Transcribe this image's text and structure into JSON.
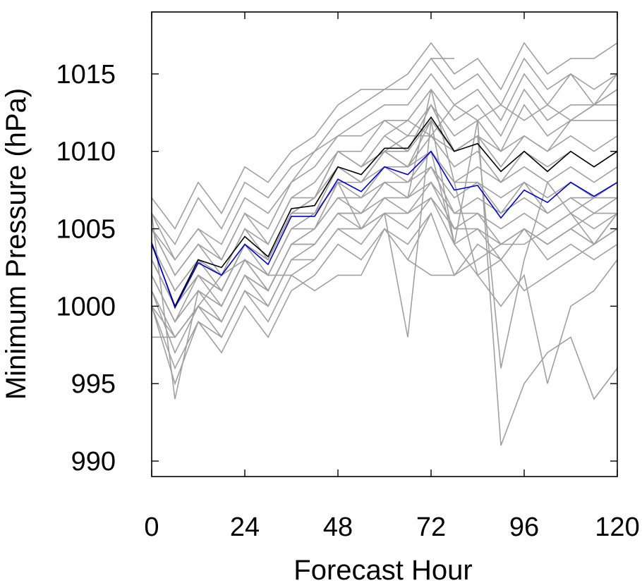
{
  "chart_data": {
    "type": "line",
    "title": "",
    "xlabel": "Forecast Hour",
    "ylabel": "Minimum Pressure (hPa)",
    "xlim": [
      0,
      120
    ],
    "ylim": [
      989,
      1019
    ],
    "xticks": [
      0,
      24,
      48,
      72,
      96,
      120
    ],
    "yticks": [
      990,
      995,
      1000,
      1005,
      1010,
      1015
    ],
    "grid": false,
    "legend": "none",
    "colors": {
      "members": "#a0a0a0",
      "mean": "#000000",
      "control": "#0000cc"
    },
    "series": [
      {
        "role": "control",
        "color": "#0000cc",
        "x": [
          0,
          6,
          12,
          18,
          24,
          30,
          36,
          42,
          48,
          54,
          60,
          66,
          72,
          78,
          84,
          90,
          96,
          102,
          108,
          114,
          120
        ],
        "values": [
          1004.1,
          999.9,
          1002.8,
          1002.0,
          1004.0,
          1002.7,
          1005.8,
          1005.8,
          1008.2,
          1007.4,
          1009.0,
          1008.5,
          1010.0,
          1007.5,
          1007.8,
          1005.7,
          1007.5,
          1006.7,
          1008.0,
          1007.1,
          1008.0
        ]
      },
      {
        "role": "mean",
        "color": "#000000",
        "x": [
          0,
          6,
          12,
          18,
          24,
          30,
          36,
          42,
          48,
          54,
          60,
          66,
          72,
          78,
          84,
          90,
          96,
          102,
          108,
          114,
          120
        ],
        "values": [
          1004.0,
          1000.0,
          1003.0,
          1002.5,
          1004.5,
          1003.2,
          1006.3,
          1006.5,
          1009.0,
          1008.5,
          1010.2,
          1010.2,
          1012.2,
          1010.0,
          1010.5,
          1008.7,
          1010.0,
          1008.7,
          1010.0,
          1009.0,
          1010.0
        ]
      },
      {
        "role": "member",
        "x": [
          0,
          6,
          12,
          18,
          24,
          30,
          36,
          42,
          48,
          54,
          60,
          66,
          72,
          78,
          84,
          90,
          96,
          102,
          108,
          114,
          120
        ],
        "values": [
          1007,
          1005,
          1008,
          1006,
          1009,
          1008,
          1010,
          1011,
          1013,
          1014,
          1014,
          1015,
          1017,
          1015,
          1016,
          1014,
          1017,
          1015,
          1016,
          1016,
          1017
        ]
      },
      {
        "role": "member",
        "x": [
          0,
          6,
          12,
          18,
          24,
          30,
          36,
          42,
          48,
          54,
          60,
          66,
          72,
          78,
          84,
          90,
          96,
          102,
          108,
          114,
          120
        ],
        "values": [
          1006,
          1004,
          1007,
          1005,
          1008,
          1007,
          1009,
          1010,
          1012,
          1013,
          1014,
          1014,
          1016,
          1014,
          1015,
          1013,
          1016,
          1014,
          1015,
          1014,
          1015
        ]
      },
      {
        "role": "member",
        "x": [
          0,
          6,
          12,
          18,
          24,
          30,
          36,
          42,
          48,
          54,
          60,
          66,
          72,
          78,
          84,
          90,
          96,
          102,
          108,
          114,
          120
        ],
        "values": [
          1006,
          1003,
          1005,
          1004,
          1007,
          1006,
          1008,
          1010,
          1011,
          1012,
          1013,
          1013,
          1015,
          1013,
          1014,
          1012,
          1015,
          1013,
          1015,
          1013,
          1014
        ]
      },
      {
        "role": "member",
        "x": [
          0,
          6,
          12,
          18,
          24,
          30,
          36,
          42,
          48,
          54,
          60,
          66,
          72,
          78,
          84,
          90,
          96,
          102,
          108,
          114,
          120
        ],
        "values": [
          1005,
          1003,
          1005,
          1003,
          1006,
          1005,
          1008,
          1009,
          1011,
          1011,
          1012,
          1012,
          1014,
          1012,
          1013,
          1011,
          1014,
          1012,
          1013,
          1013,
          1013
        ]
      },
      {
        "role": "member",
        "x": [
          0,
          6,
          12,
          18,
          24,
          30,
          36,
          42,
          48,
          54,
          60,
          66,
          72,
          78,
          84,
          90,
          96,
          102,
          108,
          114,
          120
        ],
        "values": [
          1005,
          1002,
          1004,
          1003,
          1006,
          1004,
          1007,
          1008,
          1010,
          1010,
          1012,
          1011,
          1013,
          1011,
          1012,
          1010,
          1013,
          1011,
          1012,
          1012,
          1012
        ]
      },
      {
        "role": "member",
        "x": [
          0,
          6,
          12,
          18,
          24,
          30,
          36,
          42,
          48,
          54,
          60,
          66,
          72,
          78,
          84,
          90,
          96,
          102,
          108,
          114,
          120
        ],
        "values": [
          1005,
          1002,
          1004,
          1002,
          1005,
          1004,
          1007,
          1007,
          1010,
          1009,
          1011,
          1010,
          1012,
          1010,
          1011,
          1009,
          1011,
          1010,
          1011,
          1010,
          1011
        ]
      },
      {
        "role": "member",
        "x": [
          0,
          6,
          12,
          18,
          24,
          30,
          36,
          42,
          48,
          54,
          60,
          66,
          72,
          78,
          84,
          90,
          96,
          102,
          108,
          114,
          120
        ],
        "values": [
          1004,
          1001,
          1003,
          1002,
          1005,
          1003,
          1006,
          1007,
          1009,
          1008,
          1010,
          1009,
          1011,
          1009,
          1010,
          1008,
          1010,
          1009,
          1010,
          1009,
          1010
        ]
      },
      {
        "role": "member",
        "x": [
          0,
          6,
          12,
          18,
          24,
          30,
          36,
          42,
          48,
          54,
          60,
          66,
          72,
          78,
          84,
          90,
          96,
          102,
          108,
          114,
          120
        ],
        "values": [
          1004,
          1001,
          1003,
          1001,
          1004,
          1003,
          1006,
          1006,
          1008,
          1008,
          1009,
          1009,
          1010,
          1008,
          1009,
          1008,
          1009,
          1008,
          1009,
          1008,
          1009
        ]
      },
      {
        "role": "member",
        "x": [
          0,
          6,
          12,
          18,
          24,
          30,
          36,
          42,
          48,
          54,
          60,
          66,
          72,
          78,
          84,
          90,
          96,
          102,
          108,
          114,
          120
        ],
        "values": [
          1003,
          1000,
          1002,
          1001,
          1004,
          1002,
          1005,
          1006,
          1008,
          1007,
          1009,
          1008,
          1010,
          1008,
          1008,
          1007,
          1008,
          1007,
          1008,
          1007,
          1008
        ]
      },
      {
        "role": "member",
        "x": [
          0,
          6,
          12,
          18,
          24,
          30,
          36,
          42,
          48,
          54,
          60,
          66,
          72,
          78,
          84,
          90,
          96,
          102,
          108,
          114,
          120
        ],
        "values": [
          1003,
          1000,
          1002,
          1000,
          1003,
          1002,
          1005,
          1005,
          1007,
          1007,
          1008,
          1008,
          1009,
          1007,
          1008,
          1006,
          1008,
          1006,
          1007,
          1007,
          1007
        ]
      },
      {
        "role": "member",
        "x": [
          0,
          6,
          12,
          18,
          24,
          30,
          36,
          42,
          48,
          54,
          60,
          66,
          72,
          78,
          84,
          90,
          96,
          102,
          108,
          114,
          120
        ],
        "values": [
          1002,
          999,
          1001,
          1000,
          1003,
          1001,
          1004,
          1005,
          1007,
          1006,
          1008,
          1007,
          1009,
          1006,
          1007,
          1006,
          1007,
          1006,
          1007,
          1006,
          1007
        ]
      },
      {
        "role": "member",
        "x": [
          0,
          6,
          12,
          18,
          24,
          30,
          36,
          42,
          48,
          54,
          60,
          66,
          72,
          78,
          84,
          90,
          96,
          102,
          108,
          114,
          120
        ],
        "values": [
          1002,
          999,
          1001,
          999,
          1002,
          1001,
          1004,
          1004,
          1006,
          1006,
          1007,
          1007,
          1008,
          1006,
          1006,
          1005,
          1006,
          1005,
          1006,
          1005,
          1006
        ]
      },
      {
        "role": "member",
        "x": [
          0,
          6,
          12,
          18,
          24,
          30,
          36,
          42,
          48,
          54,
          60,
          66,
          72,
          78,
          84,
          90,
          96,
          102,
          108,
          114,
          120
        ],
        "values": [
          1001,
          998,
          1000,
          999,
          1002,
          1000,
          1003,
          1004,
          1006,
          1005,
          1007,
          1006,
          1008,
          1005,
          1006,
          1004,
          1005,
          1004,
          1005,
          1004,
          1005
        ]
      },
      {
        "role": "member",
        "x": [
          0,
          6,
          12,
          18,
          24,
          30,
          36,
          42,
          48,
          54,
          60,
          66,
          72,
          78,
          84,
          90,
          96,
          102,
          108,
          114,
          120
        ],
        "values": [
          1001,
          997,
          1000,
          998,
          1001,
          1000,
          1003,
          1003,
          1005,
          1005,
          1006,
          1006,
          1007,
          1005,
          1005,
          1004,
          1005,
          1004,
          1005,
          1004,
          1005
        ]
      },
      {
        "role": "member",
        "x": [
          0,
          6,
          12,
          18,
          24,
          30,
          36,
          42,
          48,
          54,
          60,
          66,
          72,
          78,
          84,
          90,
          96,
          102,
          108,
          114,
          120
        ],
        "values": [
          1000,
          996,
          999,
          998,
          1001,
          999,
          1002,
          1003,
          1005,
          1004,
          1006,
          1005,
          1007,
          1004,
          1005,
          1003,
          1005,
          1003,
          1004,
          1003,
          1004
        ]
      },
      {
        "role": "member",
        "x": [
          0,
          6,
          12,
          18,
          24,
          30,
          36,
          42,
          48,
          54,
          60,
          66,
          72
        ],
        "values": [
          1000,
          995,
          999,
          997,
          1000,
          998,
          1001,
          1002,
          1004,
          1003,
          1005,
          1004,
          1006
        ]
      },
      {
        "role": "member",
        "x": [
          0,
          6,
          12,
          18,
          24,
          30,
          36,
          42,
          48,
          54,
          60,
          66,
          72
        ],
        "values": [
          1006,
          994,
          1001,
          1000,
          1003,
          1001,
          1004,
          1005,
          1008,
          1005,
          1006,
          998,
          1012
        ]
      },
      {
        "role": "member",
        "x": [
          0,
          6,
          12,
          18,
          24,
          30,
          36,
          42,
          48,
          54,
          60,
          66,
          72,
          78,
          84,
          90,
          96,
          102,
          108,
          114,
          120
        ],
        "values": [
          1002,
          999,
          1002,
          1001,
          1004,
          1003,
          1006,
          1007,
          1010,
          1009,
          1010,
          1010,
          1013,
          1010,
          1011,
          996,
          1003,
          1008,
          1006,
          1004,
          1006
        ]
      },
      {
        "role": "member",
        "x": [
          0,
          6,
          12,
          18,
          24,
          30,
          36,
          42,
          48,
          54,
          60,
          66,
          72,
          78,
          84,
          90,
          96,
          102,
          108,
          114,
          120
        ],
        "values": [
          1003,
          1000,
          1002,
          1001,
          1004,
          1003,
          1006,
          1006,
          1009,
          1008,
          1010,
          1009,
          1012,
          1004,
          1012,
          991,
          995,
          997,
          998,
          994,
          996
        ]
      },
      {
        "role": "member",
        "x": [
          72,
          78,
          84,
          90,
          96,
          102,
          108,
          114,
          120
        ],
        "values": [
          1010,
          1004,
          1002,
          1000,
          1002,
          995,
          1000,
          1001,
          1003
        ]
      },
      {
        "role": "member",
        "x": [
          0,
          6,
          12,
          18,
          24,
          30,
          36,
          42,
          48,
          54,
          60,
          66,
          72,
          78,
          84,
          90,
          96,
          102,
          108,
          114,
          120
        ],
        "values": [
          1000,
          998,
          1000,
          999,
          1002,
          1001,
          1004,
          1004,
          1006,
          1006,
          1008,
          1007,
          1014,
          1008,
          1002,
          1003,
          1001,
          1002,
          1003,
          1004,
          1006
        ]
      },
      {
        "role": "member",
        "x": [
          0,
          6,
          12,
          18,
          24,
          30,
          36,
          42,
          48,
          54,
          60,
          66,
          72,
          78,
          84,
          90,
          96,
          102,
          108,
          114,
          120
        ],
        "values": [
          998,
          998,
          1000,
          1002,
          1003,
          1002,
          1002,
          1001,
          1002,
          1002,
          1005,
          1003,
          1006,
          1002,
          1004,
          1003,
          1005,
          1004,
          1005,
          1006,
          1006
        ]
      },
      {
        "role": "member",
        "x": [
          66,
          72,
          78,
          84,
          90,
          96,
          102,
          108,
          114,
          120
        ],
        "values": [
          1003,
          1002,
          1002,
          1003,
          1004,
          1004,
          1005,
          1006,
          1007,
          1008
        ]
      },
      {
        "role": "member",
        "x": [
          72,
          78
        ],
        "values": [
          1016,
          1016
        ]
      },
      {
        "role": "member",
        "x": [
          60,
          66,
          72,
          78,
          84,
          90,
          96,
          102,
          108,
          114,
          120
        ],
        "values": [
          1011,
          1012,
          1011,
          1013,
          1012,
          1013,
          1012,
          1013,
          1012,
          1013,
          1014
        ]
      },
      {
        "role": "member",
        "x": [
          54,
          60,
          66,
          72,
          78,
          84,
          90,
          96,
          102,
          108,
          114,
          120
        ],
        "values": [
          1009,
          1010,
          1011,
          1011,
          1010,
          1011,
          1010,
          1011,
          1010,
          1012,
          1013,
          1015
        ]
      }
    ]
  }
}
